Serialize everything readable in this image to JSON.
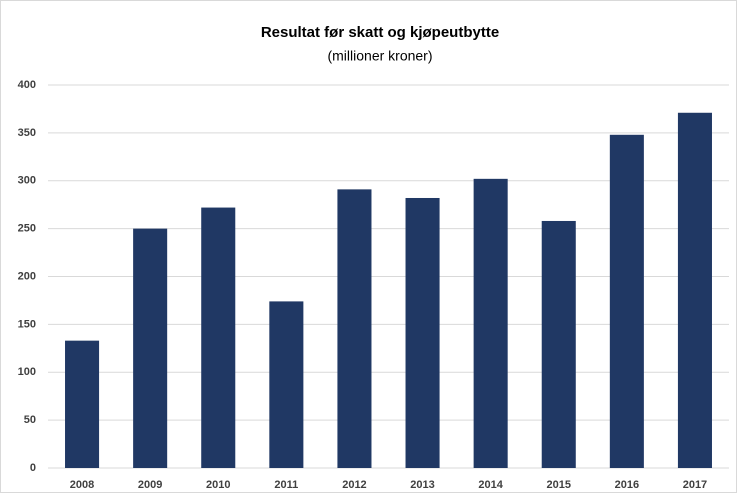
{
  "chart_data": {
    "type": "bar",
    "title": "Resultat før skatt og kjøpeutbytte",
    "subtitle": "(millioner kroner)",
    "categories": [
      "2008",
      "2009",
      "2010",
      "2011",
      "2012",
      "2013",
      "2014",
      "2015",
      "2016",
      "2017"
    ],
    "values": [
      133,
      250,
      272,
      174,
      291,
      282,
      302,
      258,
      348,
      371
    ],
    "color": "#203864",
    "ylim": [
      0,
      400
    ],
    "yticks": [
      0,
      50,
      100,
      150,
      200,
      250,
      300,
      350,
      400
    ],
    "grid": true
  }
}
